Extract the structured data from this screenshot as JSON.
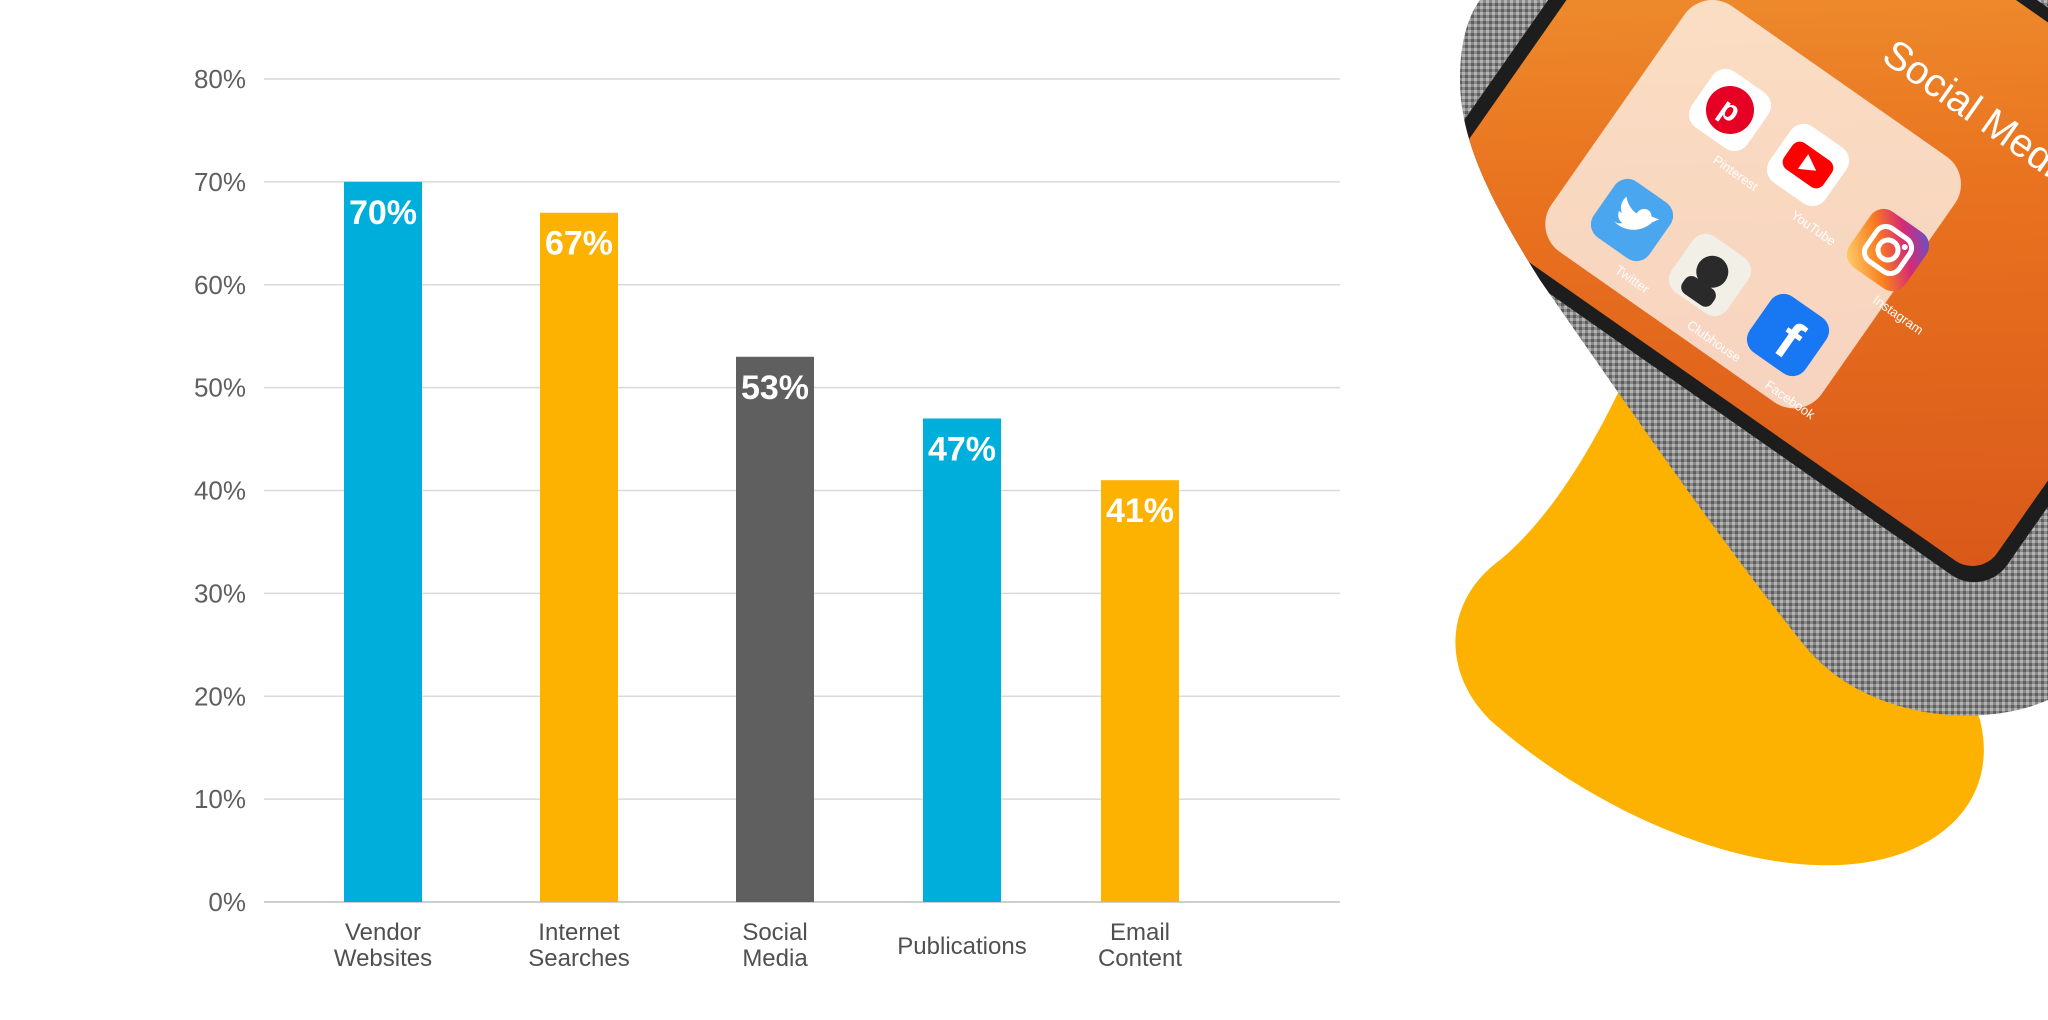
{
  "chart_data": {
    "type": "bar",
    "categories": [
      [
        "Vendor",
        "Websites"
      ],
      [
        "Internet",
        "Searches"
      ],
      [
        "Social",
        "Media"
      ],
      [
        "Publications"
      ],
      [
        "Email",
        "Content"
      ]
    ],
    "values": [
      70,
      67,
      53,
      47,
      41
    ],
    "data_labels": [
      "70%",
      "67%",
      "53%",
      "47%",
      "41%"
    ],
    "bar_colors": [
      "#00aedb",
      "#fdb100",
      "#5f5f5f",
      "#00aedb",
      "#fdb100"
    ],
    "y_ticks": [
      "0%",
      "10%",
      "20%",
      "30%",
      "40%",
      "50%",
      "60%",
      "70%",
      "80%"
    ],
    "y_tick_values": [
      0,
      10,
      20,
      30,
      40,
      50,
      60,
      70,
      80
    ],
    "ylim": [
      0,
      80
    ],
    "grid": true,
    "title": "",
    "xlabel": "",
    "ylabel": ""
  },
  "photo": {
    "overlay_text": "Social Media",
    "apps": [
      {
        "name": "Pinterest",
        "icon": "pinterest-icon",
        "color": "#e60023"
      },
      {
        "name": "Twitter",
        "icon": "twitter-icon",
        "color": "#1da1f2"
      },
      {
        "name": "YouTube",
        "icon": "youtube-icon",
        "color": "#ff0000"
      },
      {
        "name": "Clubhouse",
        "icon": "clubhouse-icon",
        "color": "#f2efe6"
      },
      {
        "name": "Instagram",
        "icon": "instagram-icon",
        "color": "#d62976"
      },
      {
        "name": "Facebook",
        "icon": "facebook-icon",
        "color": "#1877f2"
      }
    ],
    "accent_color": "#fdb100"
  }
}
